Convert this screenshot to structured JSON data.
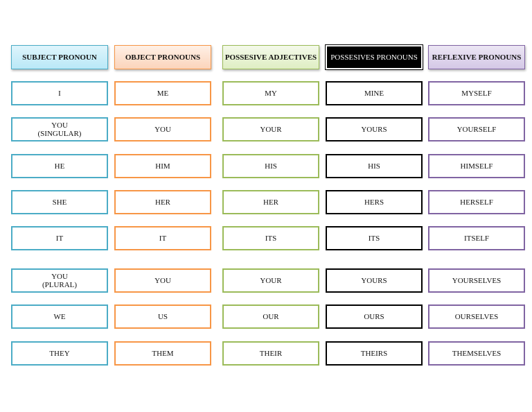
{
  "table": {
    "columns": [
      {
        "header": "SUBJECT PRONOUN",
        "cells": [
          "I",
          "YOU\n(SINGULAR)",
          "HE",
          "SHE",
          "IT",
          "YOU\n(PLURAL)",
          "WE",
          "THEY"
        ]
      },
      {
        "header": "OBJECT PRONOUNS",
        "cells": [
          "ME",
          "YOU",
          "HIM",
          "HER",
          "IT",
          "YOU",
          "US",
          "THEM"
        ]
      },
      {
        "header": "POSSESIVE ADJECTIVES",
        "cells": [
          "MY",
          "YOUR",
          "HIS",
          "HER",
          "ITS",
          "YOUR",
          "OUR",
          "THEIR"
        ]
      },
      {
        "header": "POSSESIVES PRONOUNS",
        "cells": [
          "MINE",
          "YOURS",
          "HIS",
          "HERS",
          "ITS",
          "YOURS",
          "OURS",
          "THEIRS"
        ]
      },
      {
        "header": "REFLEXIVE PRONOUNS",
        "cells": [
          "MYSELF",
          "YOURSELF",
          "HIMSELF",
          "HERSELF",
          "ITSELF",
          "YOURSELVES",
          "OURSELVES",
          "THEMSELVES"
        ]
      }
    ]
  }
}
